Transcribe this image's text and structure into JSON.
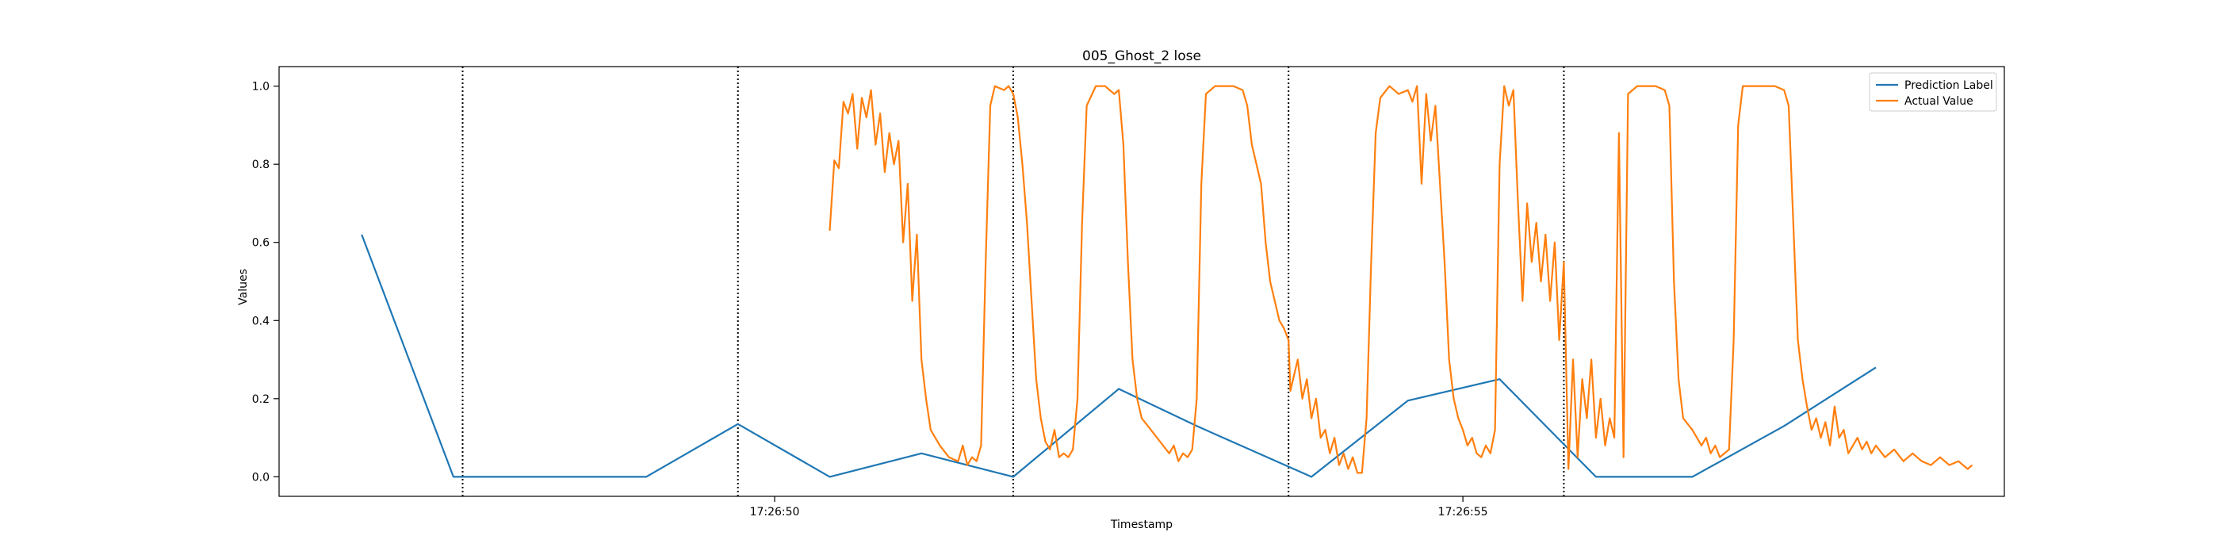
{
  "chart_data": {
    "type": "line",
    "title": "005_Ghost_2 lose",
    "xlabel": "Timestamp",
    "ylabel": "Values",
    "xlim": [
      44.6,
      63.4
    ],
    "ylim": [
      -0.05,
      1.05
    ],
    "x_tick_values": [
      50,
      57.5
    ],
    "x_tick_labels": [
      "17:26:50",
      "17:26:55"
    ],
    "y_ticks": [
      0.0,
      0.2,
      0.4,
      0.6,
      0.8,
      1.0
    ],
    "y_tick_labels": [
      "0.0",
      "0.2",
      "0.4",
      "0.6",
      "0.8",
      "1.0"
    ],
    "grid": false,
    "legend_position": "top-right",
    "vlines": [
      46.6,
      49.6,
      52.6,
      55.6,
      58.6
    ],
    "series": [
      {
        "name": "Prediction Label",
        "color": "#1f77b4",
        "points": [
          [
            45.5,
            0.62
          ],
          [
            46.5,
            0.0
          ],
          [
            48.6,
            0.0
          ],
          [
            49.6,
            0.135
          ],
          [
            50.6,
            0.0
          ],
          [
            51.6,
            0.06
          ],
          [
            52.6,
            0.0
          ],
          [
            53.75,
            0.225
          ],
          [
            54.6,
            0.13
          ],
          [
            55.85,
            0.0
          ],
          [
            56.9,
            0.195
          ],
          [
            57.9,
            0.25
          ],
          [
            58.95,
            0.0
          ],
          [
            60.0,
            0.0
          ],
          [
            61.0,
            0.13
          ],
          [
            62.0,
            0.28
          ]
        ]
      },
      {
        "name": "Actual Value",
        "color": "#ff7f0e",
        "points": [
          [
            50.6,
            0.63
          ],
          [
            50.65,
            0.81
          ],
          [
            50.7,
            0.79
          ],
          [
            50.75,
            0.96
          ],
          [
            50.8,
            0.93
          ],
          [
            50.85,
            0.98
          ],
          [
            50.9,
            0.84
          ],
          [
            50.95,
            0.97
          ],
          [
            51.0,
            0.92
          ],
          [
            51.05,
            0.99
          ],
          [
            51.1,
            0.85
          ],
          [
            51.15,
            0.93
          ],
          [
            51.2,
            0.78
          ],
          [
            51.25,
            0.88
          ],
          [
            51.3,
            0.8
          ],
          [
            51.35,
            0.86
          ],
          [
            51.4,
            0.6
          ],
          [
            51.45,
            0.75
          ],
          [
            51.5,
            0.45
          ],
          [
            51.55,
            0.62
          ],
          [
            51.6,
            0.3
          ],
          [
            51.65,
            0.2
          ],
          [
            51.7,
            0.12
          ],
          [
            51.8,
            0.08
          ],
          [
            51.9,
            0.05
          ],
          [
            52.0,
            0.04
          ],
          [
            52.05,
            0.08
          ],
          [
            52.1,
            0.03
          ],
          [
            52.15,
            0.05
          ],
          [
            52.2,
            0.04
          ],
          [
            52.25,
            0.08
          ],
          [
            52.3,
            0.55
          ],
          [
            52.35,
            0.95
          ],
          [
            52.4,
            1.0
          ],
          [
            52.5,
            0.99
          ],
          [
            52.55,
            1.0
          ],
          [
            52.6,
            0.98
          ],
          [
            52.65,
            0.92
          ],
          [
            52.7,
            0.8
          ],
          [
            52.75,
            0.65
          ],
          [
            52.8,
            0.45
          ],
          [
            52.85,
            0.25
          ],
          [
            52.9,
            0.15
          ],
          [
            52.95,
            0.09
          ],
          [
            53.0,
            0.07
          ],
          [
            53.05,
            0.12
          ],
          [
            53.1,
            0.05
          ],
          [
            53.15,
            0.06
          ],
          [
            53.2,
            0.05
          ],
          [
            53.25,
            0.07
          ],
          [
            53.3,
            0.2
          ],
          [
            53.35,
            0.65
          ],
          [
            53.4,
            0.95
          ],
          [
            53.5,
            1.0
          ],
          [
            53.6,
            1.0
          ],
          [
            53.7,
            0.98
          ],
          [
            53.75,
            0.99
          ],
          [
            53.8,
            0.85
          ],
          [
            53.85,
            0.55
          ],
          [
            53.9,
            0.3
          ],
          [
            53.95,
            0.2
          ],
          [
            54.0,
            0.15
          ],
          [
            54.1,
            0.12
          ],
          [
            54.2,
            0.09
          ],
          [
            54.3,
            0.06
          ],
          [
            54.35,
            0.08
          ],
          [
            54.4,
            0.04
          ],
          [
            54.45,
            0.06
          ],
          [
            54.5,
            0.05
          ],
          [
            54.55,
            0.07
          ],
          [
            54.6,
            0.2
          ],
          [
            54.65,
            0.75
          ],
          [
            54.7,
            0.98
          ],
          [
            54.8,
            1.0
          ],
          [
            55.0,
            1.0
          ],
          [
            55.1,
            0.99
          ],
          [
            55.15,
            0.95
          ],
          [
            55.2,
            0.85
          ],
          [
            55.3,
            0.75
          ],
          [
            55.35,
            0.6
          ],
          [
            55.4,
            0.5
          ],
          [
            55.45,
            0.45
          ],
          [
            55.5,
            0.4
          ],
          [
            55.55,
            0.38
          ],
          [
            55.6,
            0.35
          ],
          [
            55.62,
            0.22
          ],
          [
            55.7,
            0.3
          ],
          [
            55.75,
            0.2
          ],
          [
            55.8,
            0.25
          ],
          [
            55.85,
            0.15
          ],
          [
            55.9,
            0.2
          ],
          [
            55.95,
            0.1
          ],
          [
            56.0,
            0.12
          ],
          [
            56.05,
            0.06
          ],
          [
            56.1,
            0.1
          ],
          [
            56.15,
            0.03
          ],
          [
            56.2,
            0.06
          ],
          [
            56.25,
            0.02
          ],
          [
            56.3,
            0.05
          ],
          [
            56.35,
            0.01
          ],
          [
            56.4,
            0.01
          ],
          [
            56.45,
            0.15
          ],
          [
            56.5,
            0.55
          ],
          [
            56.55,
            0.88
          ],
          [
            56.6,
            0.97
          ],
          [
            56.7,
            1.0
          ],
          [
            56.8,
            0.98
          ],
          [
            56.9,
            0.99
          ],
          [
            56.95,
            0.96
          ],
          [
            57.0,
            1.0
          ],
          [
            57.05,
            0.75
          ],
          [
            57.1,
            0.98
          ],
          [
            57.15,
            0.86
          ],
          [
            57.2,
            0.95
          ],
          [
            57.3,
            0.55
          ],
          [
            57.35,
            0.3
          ],
          [
            57.4,
            0.2
          ],
          [
            57.45,
            0.15
          ],
          [
            57.5,
            0.12
          ],
          [
            57.55,
            0.08
          ],
          [
            57.6,
            0.1
          ],
          [
            57.65,
            0.06
          ],
          [
            57.7,
            0.05
          ],
          [
            57.75,
            0.08
          ],
          [
            57.8,
            0.06
          ],
          [
            57.85,
            0.12
          ],
          [
            57.9,
            0.8
          ],
          [
            57.95,
            1.0
          ],
          [
            58.0,
            0.95
          ],
          [
            58.05,
            0.99
          ],
          [
            58.1,
            0.7
          ],
          [
            58.15,
            0.45
          ],
          [
            58.2,
            0.7
          ],
          [
            58.25,
            0.55
          ],
          [
            58.3,
            0.65
          ],
          [
            58.35,
            0.5
          ],
          [
            58.4,
            0.62
          ],
          [
            58.45,
            0.45
          ],
          [
            58.5,
            0.6
          ],
          [
            58.55,
            0.35
          ],
          [
            58.6,
            0.55
          ],
          [
            58.65,
            0.02
          ],
          [
            58.7,
            0.3
          ],
          [
            58.75,
            0.05
          ],
          [
            58.8,
            0.25
          ],
          [
            58.85,
            0.15
          ],
          [
            58.9,
            0.3
          ],
          [
            58.95,
            0.1
          ],
          [
            59.0,
            0.2
          ],
          [
            59.05,
            0.08
          ],
          [
            59.1,
            0.15
          ],
          [
            59.15,
            0.1
          ],
          [
            59.2,
            0.88
          ],
          [
            59.25,
            0.05
          ],
          [
            59.3,
            0.98
          ],
          [
            59.4,
            1.0
          ],
          [
            59.6,
            1.0
          ],
          [
            59.7,
            0.99
          ],
          [
            59.75,
            0.95
          ],
          [
            59.8,
            0.5
          ],
          [
            59.85,
            0.25
          ],
          [
            59.9,
            0.15
          ],
          [
            60.0,
            0.12
          ],
          [
            60.1,
            0.08
          ],
          [
            60.15,
            0.1
          ],
          [
            60.2,
            0.06
          ],
          [
            60.25,
            0.08
          ],
          [
            60.3,
            0.05
          ],
          [
            60.4,
            0.07
          ],
          [
            60.45,
            0.35
          ],
          [
            60.5,
            0.9
          ],
          [
            60.55,
            1.0
          ],
          [
            60.7,
            1.0
          ],
          [
            60.9,
            1.0
          ],
          [
            61.0,
            0.99
          ],
          [
            61.05,
            0.95
          ],
          [
            61.1,
            0.65
          ],
          [
            61.15,
            0.35
          ],
          [
            61.2,
            0.25
          ],
          [
            61.25,
            0.18
          ],
          [
            61.3,
            0.12
          ],
          [
            61.35,
            0.15
          ],
          [
            61.4,
            0.1
          ],
          [
            61.45,
            0.14
          ],
          [
            61.5,
            0.08
          ],
          [
            61.55,
            0.18
          ],
          [
            61.6,
            0.1
          ],
          [
            61.65,
            0.12
          ],
          [
            61.7,
            0.06
          ],
          [
            61.8,
            0.1
          ],
          [
            61.85,
            0.07
          ],
          [
            61.9,
            0.09
          ],
          [
            61.95,
            0.06
          ],
          [
            62.0,
            0.08
          ],
          [
            62.1,
            0.05
          ],
          [
            62.2,
            0.07
          ],
          [
            62.3,
            0.04
          ],
          [
            62.4,
            0.06
          ],
          [
            62.5,
            0.04
          ],
          [
            62.6,
            0.03
          ],
          [
            62.7,
            0.05
          ],
          [
            62.8,
            0.03
          ],
          [
            62.9,
            0.04
          ],
          [
            63.0,
            0.02
          ],
          [
            63.05,
            0.03
          ]
        ]
      }
    ]
  }
}
